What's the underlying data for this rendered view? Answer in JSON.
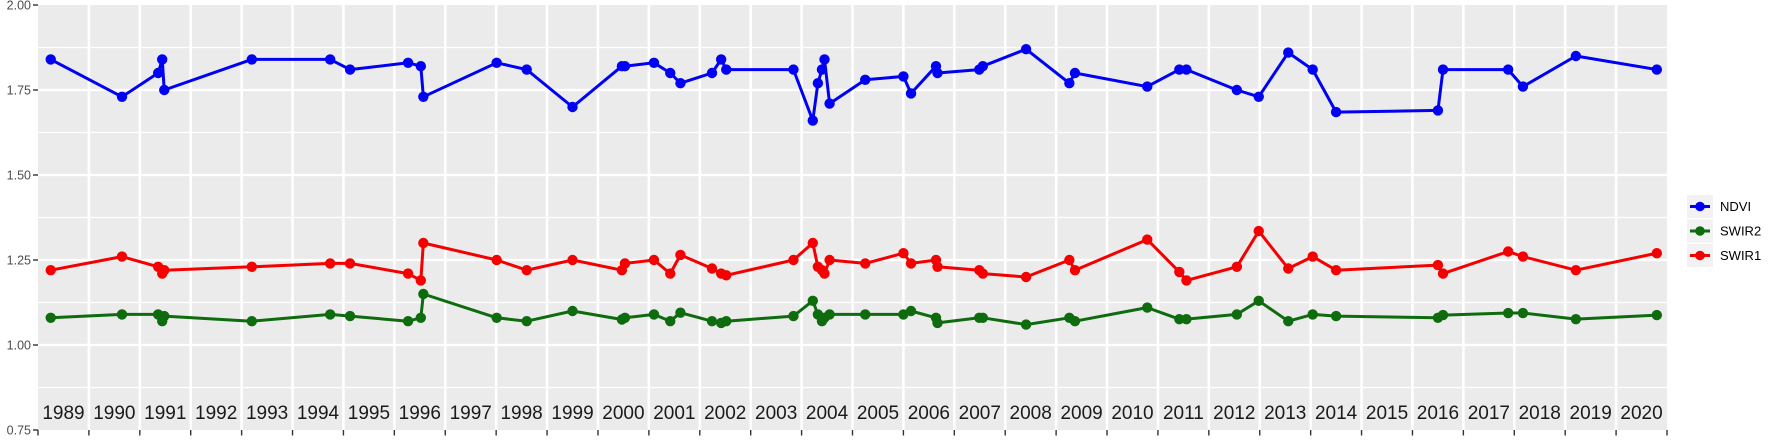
{
  "chart_data": {
    "type": "line",
    "title": "",
    "xlabel": "",
    "ylabel": "",
    "xlim": [
      1989,
      2021
    ],
    "ylim": [
      0.75,
      2.0
    ],
    "grid": true,
    "legend_position": "right",
    "x_tick_labels": [
      "1989",
      "1990",
      "1991",
      "1992",
      "1993",
      "1994",
      "1995",
      "1996",
      "1997",
      "1998",
      "1999",
      "2000",
      "2001",
      "2002",
      "2003",
      "2004",
      "2005",
      "2006",
      "2007",
      "2008",
      "2009",
      "2010",
      "2011",
      "2012",
      "2013",
      "2014",
      "2015",
      "2016",
      "2017",
      "2018",
      "2019",
      "2020"
    ],
    "y_tick_labels": [
      "2.00",
      "1.75",
      "1.50",
      "1.25",
      "1.00",
      "0.75"
    ],
    "y_tick_values": [
      2.0,
      1.75,
      1.5,
      1.25,
      1.0,
      0.75
    ],
    "y_minor_gridlines": [
      1.875,
      1.625,
      1.375,
      1.125,
      0.875
    ],
    "y_major_gridlines": [
      1.75,
      1.5,
      1.25,
      1.0
    ],
    "x": [
      1989.25,
      1990.65,
      1991.36,
      1991.44,
      1991.48,
      1993.2,
      1994.74,
      1995.13,
      1996.27,
      1996.52,
      1996.57,
      1998.01,
      1998.6,
      1999.5,
      2000.47,
      2000.53,
      2001.1,
      2001.42,
      2001.62,
      2002.24,
      2002.42,
      2002.52,
      2003.84,
      2004.22,
      2004.32,
      2004.4,
      2004.45,
      2004.55,
      2005.25,
      2006.0,
      2006.15,
      2006.64,
      2006.67,
      2007.49,
      2007.56,
      2008.41,
      2009.26,
      2009.37,
      2010.79,
      2011.42,
      2011.56,
      2012.55,
      2012.98,
      2013.56,
      2014.04,
      2014.5,
      2016.5,
      2016.6,
      2017.88,
      2018.17,
      2019.21,
      2020.8
    ],
    "series": [
      {
        "name": "NDVI",
        "color": "#0000F5",
        "values": [
          1.84,
          1.73,
          1.8,
          1.84,
          1.75,
          1.84,
          1.84,
          1.81,
          1.83,
          1.82,
          1.73,
          1.83,
          1.81,
          1.7,
          1.82,
          1.82,
          1.83,
          1.8,
          1.77,
          1.8,
          1.84,
          1.81,
          1.81,
          1.66,
          1.77,
          1.81,
          1.84,
          1.71,
          1.78,
          1.79,
          1.74,
          1.82,
          1.8,
          1.81,
          1.82,
          1.87,
          1.77,
          1.8,
          1.76,
          1.81,
          1.81,
          1.75,
          1.73,
          1.86,
          1.81,
          1.685,
          1.69,
          1.81,
          1.81,
          1.76,
          1.85,
          1.81
        ]
      },
      {
        "name": "SWIR2",
        "color": "#0E6B0E",
        "values": [
          1.08,
          1.09,
          1.09,
          1.07,
          1.085,
          1.07,
          1.09,
          1.085,
          1.07,
          1.08,
          1.15,
          1.08,
          1.07,
          1.1,
          1.075,
          1.08,
          1.09,
          1.07,
          1.095,
          1.07,
          1.065,
          1.07,
          1.085,
          1.13,
          1.09,
          1.07,
          1.08,
          1.09,
          1.09,
          1.09,
          1.1,
          1.08,
          1.065,
          1.08,
          1.08,
          1.06,
          1.08,
          1.07,
          1.11,
          1.076,
          1.076,
          1.09,
          1.13,
          1.07,
          1.09,
          1.085,
          1.08,
          1.088,
          1.094,
          1.094,
          1.076,
          1.088
        ]
      },
      {
        "name": "SWIR1",
        "color": "#F50000",
        "values": [
          1.22,
          1.26,
          1.23,
          1.21,
          1.22,
          1.23,
          1.24,
          1.24,
          1.21,
          1.19,
          1.3,
          1.25,
          1.22,
          1.25,
          1.22,
          1.24,
          1.25,
          1.21,
          1.265,
          1.225,
          1.21,
          1.205,
          1.25,
          1.3,
          1.23,
          1.22,
          1.21,
          1.25,
          1.24,
          1.27,
          1.24,
          1.25,
          1.23,
          1.22,
          1.21,
          1.2,
          1.25,
          1.22,
          1.31,
          1.215,
          1.19,
          1.23,
          1.335,
          1.225,
          1.26,
          1.22,
          1.235,
          1.21,
          1.275,
          1.26,
          1.22,
          1.27
        ]
      }
    ],
    "legend_entries": [
      "NDVI",
      "SWIR2",
      "SWIR1"
    ]
  },
  "style_colors": {
    "background": "#FFFFFF",
    "panel_background": "#EBEBEB",
    "gridline": "#FFFFFF",
    "axis_text": "#4D4D4D",
    "year_label_text": "#1A1A1A",
    "tick_mark": "#333333",
    "legend_key_background": "#F2F2F2",
    "legend_text": "#000000"
  }
}
